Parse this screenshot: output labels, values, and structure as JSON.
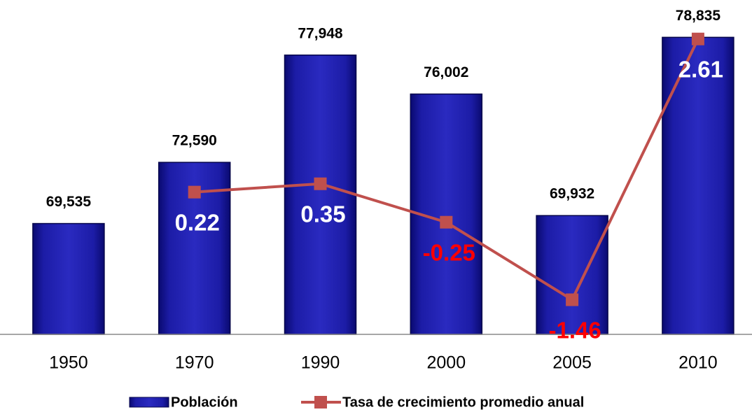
{
  "chart_data": {
    "type": "bar",
    "categories": [
      "1950",
      "1970",
      "1990",
      "2000",
      "2005",
      "2010"
    ],
    "series": [
      {
        "name": "Población",
        "type": "bar",
        "color": "#1c1ca6",
        "values": [
          69535,
          72590,
          77948,
          76002,
          69932,
          78835
        ],
        "value_labels": [
          "69,535",
          "72,590",
          "77,948",
          "76,002",
          "69,932",
          "78,835"
        ]
      },
      {
        "name": "Tasa de crecimiento promedio anual",
        "type": "line",
        "axis": "y2",
        "color": "#c0504d",
        "values": [
          null,
          0.22,
          0.35,
          -0.25,
          -1.46,
          2.61
        ]
      }
    ],
    "ylim": [
      64000,
      80000
    ],
    "y2lim": [
      -2,
      3
    ],
    "grid": false,
    "legend": "bottom"
  }
}
